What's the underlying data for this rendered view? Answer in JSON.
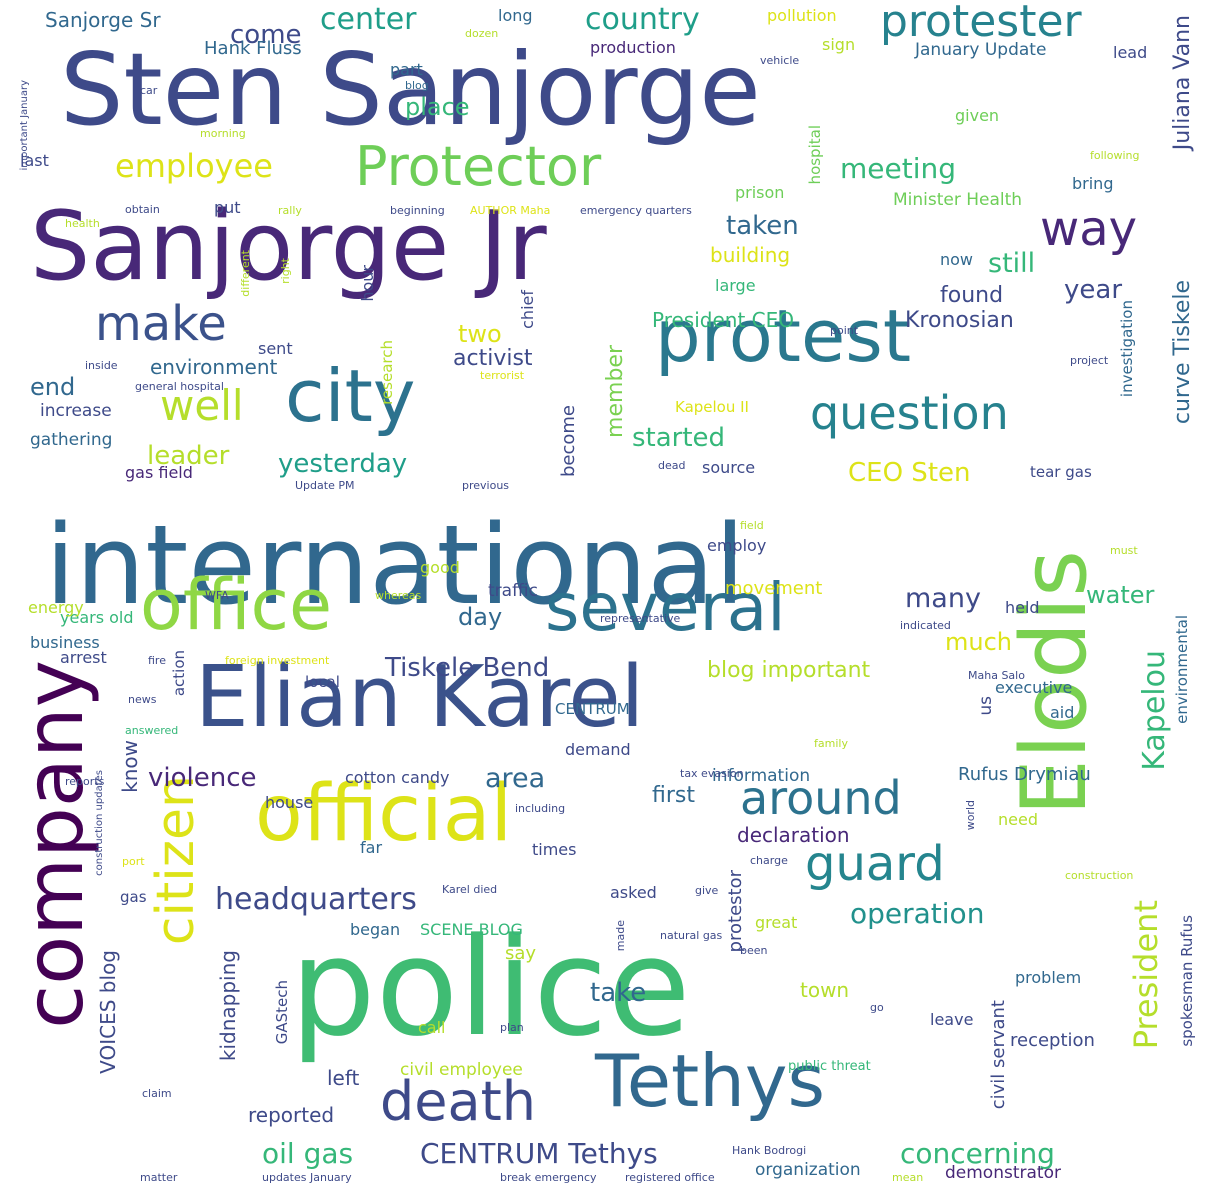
{
  "palette": [
    "#440154",
    "#482878",
    "#3e4a89",
    "#31688e",
    "#26828e",
    "#1f9e89",
    "#35b779",
    "#6ece58",
    "#b5de2b",
    "#dde318",
    "#fde725"
  ],
  "words": [
    {
      "text": "international",
      "size": 1.0,
      "color": "#31688e"
    },
    {
      "text": "police",
      "size": 0.95,
      "color": "#3fbc73"
    },
    {
      "text": "Sten Sanjorge",
      "size": 0.86,
      "color": "#3e4a89"
    },
    {
      "text": "Sanjorge Jr",
      "size": 0.84,
      "color": "#482878"
    },
    {
      "text": "Elian Karel",
      "size": 0.71,
      "color": "#3b528b"
    },
    {
      "text": "Elodis",
      "size": 0.64,
      "color": "#7ad151"
    },
    {
      "text": "company",
      "size": 0.62,
      "color": "#440154"
    },
    {
      "text": "official",
      "size": 0.55,
      "color": "#dde318"
    },
    {
      "text": "Tethys",
      "size": 0.5,
      "color": "#31688e"
    },
    {
      "text": "protest",
      "size": 0.5,
      "color": "#2a788e"
    },
    {
      "text": "city",
      "size": 0.5,
      "color": "#2c728e"
    },
    {
      "text": "office",
      "size": 0.5,
      "color": "#8fd744"
    },
    {
      "text": "several",
      "size": 0.48,
      "color": "#2c728e"
    },
    {
      "text": "citizen",
      "size": 0.45,
      "color": "#dde318"
    },
    {
      "text": "death",
      "size": 0.42,
      "color": "#3e4a89"
    },
    {
      "text": "Protector",
      "size": 0.4,
      "color": "#6ece58"
    },
    {
      "text": "protester",
      "size": 0.35,
      "color": "#26828e"
    },
    {
      "text": "question",
      "size": 0.34,
      "color": "#26828e"
    },
    {
      "text": "around",
      "size": 0.34,
      "color": "#2c728e"
    },
    {
      "text": "guard",
      "size": 0.34,
      "color": "#25858e"
    },
    {
      "text": "make",
      "size": 0.32,
      "color": "#3b528b"
    },
    {
      "text": "way",
      "size": 0.32,
      "color": "#482878"
    },
    {
      "text": "well",
      "size": 0.3,
      "color": "#b5de2b"
    },
    {
      "text": "President",
      "size": 0.3,
      "color": "#b5de2b"
    },
    {
      "text": "headquarters",
      "size": 0.24,
      "color": "#3e4a89"
    },
    {
      "text": "country",
      "size": 0.24,
      "color": "#1f9e89"
    },
    {
      "text": "center",
      "size": 0.24,
      "color": "#1f9e89"
    },
    {
      "text": "Kapelou",
      "size": 0.24,
      "color": "#35b779"
    },
    {
      "text": "employee",
      "size": 0.22,
      "color": "#dde318"
    },
    {
      "text": "meeting",
      "size": 0.22,
      "color": "#35b779"
    },
    {
      "text": "operation",
      "size": 0.22,
      "color": "#21918c"
    },
    {
      "text": "concerning",
      "size": 0.22,
      "color": "#35b779"
    },
    {
      "text": "CENTRUM Tethys",
      "size": 0.21,
      "color": "#3e4a89"
    },
    {
      "text": "Tiskele Bend",
      "size": 0.2,
      "color": "#3e4a89"
    },
    {
      "text": "oil gas",
      "size": 0.21,
      "color": "#35b779"
    },
    {
      "text": "violence",
      "size": 0.21,
      "color": "#482878"
    },
    {
      "text": "leader",
      "size": 0.21,
      "color": "#b5de2b"
    },
    {
      "text": "yesterday",
      "size": 0.21,
      "color": "#1f9e89"
    },
    {
      "text": "CEO Sten",
      "size": 0.21,
      "color": "#dde318"
    },
    {
      "text": "area",
      "size": 0.21,
      "color": "#31688e"
    },
    {
      "text": "many",
      "size": 0.21,
      "color": "#3e4a89"
    },
    {
      "text": "still",
      "size": 0.2,
      "color": "#35b779"
    },
    {
      "text": "year",
      "size": 0.19,
      "color": "#3e4a89"
    },
    {
      "text": "taken",
      "size": 0.19,
      "color": "#31688e"
    },
    {
      "text": "started",
      "size": 0.19,
      "color": "#35b779"
    },
    {
      "text": "come",
      "size": 0.19,
      "color": "#3e4a89"
    },
    {
      "text": "take",
      "size": 0.19,
      "color": "#31688e"
    },
    {
      "text": "much",
      "size": 0.19,
      "color": "#dde318"
    },
    {
      "text": "water",
      "size": 0.19,
      "color": "#35b779"
    },
    {
      "text": "Juliana Vann",
      "size": 0.19,
      "color": "#3e4a89"
    },
    {
      "text": "curve Tiskele",
      "size": 0.19,
      "color": "#31688e"
    },
    {
      "text": "kidnapping",
      "size": 0.18,
      "color": "#3e4a89"
    },
    {
      "text": "VOICES blog",
      "size": 0.17,
      "color": "#3e4a89"
    },
    {
      "text": "place",
      "size": 0.17,
      "color": "#35b779"
    },
    {
      "text": "day",
      "size": 0.17,
      "color": "#31688e"
    },
    {
      "text": "two",
      "size": 0.17,
      "color": "#dde318"
    },
    {
      "text": "end",
      "size": 0.17,
      "color": "#31688e"
    },
    {
      "text": "first",
      "size": 0.16,
      "color": "#31688e"
    },
    {
      "text": "member",
      "size": 0.16,
      "color": "#7ad151"
    },
    {
      "text": "building",
      "size": 0.16,
      "color": "#dde318"
    },
    {
      "text": "found",
      "size": 0.16,
      "color": "#3e4a89"
    },
    {
      "text": "Kronosian",
      "size": 0.16,
      "color": "#3e4a89"
    },
    {
      "text": "President CEO",
      "size": 0.15,
      "color": "#35b779"
    },
    {
      "text": "activist",
      "size": 0.15,
      "color": "#3e4a89"
    },
    {
      "text": "environment",
      "size": 0.15,
      "color": "#31688e"
    },
    {
      "text": "know",
      "size": 0.15,
      "color": "#3e4a89"
    },
    {
      "text": "blog important",
      "size": 0.15,
      "color": "#b5de2b"
    },
    {
      "text": "declaration",
      "size": 0.15,
      "color": "#482878"
    },
    {
      "text": "left",
      "size": 0.15,
      "color": "#3e4a89"
    },
    {
      "text": "town",
      "size": 0.15,
      "color": "#b5de2b"
    },
    {
      "text": "reported",
      "size": 0.15,
      "color": "#3e4a89"
    },
    {
      "text": "reception",
      "size": 0.14,
      "color": "#3e4a89"
    },
    {
      "text": "civil servant",
      "size": 0.14,
      "color": "#3e4a89"
    },
    {
      "text": "become",
      "size": 0.14,
      "color": "#3e4a89"
    },
    {
      "text": "protestor",
      "size": 0.14,
      "color": "#3e4a89"
    },
    {
      "text": "Sanjorge Sr",
      "size": 0.14,
      "color": "#31688e"
    },
    {
      "text": "Rufus Drymiau",
      "size": 0.13,
      "color": "#31688e"
    },
    {
      "text": "say",
      "size": 0.13,
      "color": "#b5de2b"
    },
    {
      "text": "movement",
      "size": 0.13,
      "color": "#dde318"
    },
    {
      "text": "us",
      "size": 0.13,
      "color": "#3e4a89"
    },
    {
      "text": "information",
      "size": 0.12,
      "color": "#31688e"
    },
    {
      "text": "Hank Fluss",
      "size": 0.12,
      "color": "#31688e"
    },
    {
      "text": "January Update",
      "size": 0.12,
      "color": "#31688e"
    },
    {
      "text": "Minister Health",
      "size": 0.12,
      "color": "#6ece58"
    },
    {
      "text": "gas field",
      "size": 0.12,
      "color": "#482878"
    },
    {
      "text": "increase",
      "size": 0.12,
      "color": "#3e4a89"
    },
    {
      "text": "gathering",
      "size": 0.12,
      "color": "#31688e"
    },
    {
      "text": "traffic",
      "size": 0.12,
      "color": "#3e4a89"
    },
    {
      "text": "executive",
      "size": 0.12,
      "color": "#31688e"
    },
    {
      "text": "civil employee",
      "size": 0.12,
      "color": "#b5de2b"
    },
    {
      "text": "organization",
      "size": 0.12,
      "color": "#31688e"
    },
    {
      "text": "demonstrator",
      "size": 0.12,
      "color": "#482878"
    },
    {
      "text": "cotton candy",
      "size": 0.12,
      "color": "#3e4a89"
    },
    {
      "text": "house",
      "size": 0.12,
      "color": "#3e4a89"
    },
    {
      "text": "business",
      "size": 0.12,
      "color": "#31688e"
    },
    {
      "text": "arrest",
      "size": 0.12,
      "color": "#3e4a89"
    },
    {
      "text": "years old",
      "size": 0.12,
      "color": "#35b779"
    },
    {
      "text": "energy",
      "size": 0.12,
      "color": "#b5de2b"
    },
    {
      "text": "employ",
      "size": 0.12,
      "color": "#3e4a89"
    },
    {
      "text": "great",
      "size": 0.12,
      "color": "#b5de2b"
    },
    {
      "text": "held",
      "size": 0.12,
      "color": "#3e4a89"
    },
    {
      "text": "problem",
      "size": 0.12,
      "color": "#31688e"
    },
    {
      "text": "leave",
      "size": 0.12,
      "color": "#3e4a89"
    },
    {
      "text": "pollution",
      "size": 0.12,
      "color": "#dde318"
    },
    {
      "text": "production",
      "size": 0.12,
      "color": "#482878"
    },
    {
      "text": "long",
      "size": 0.12,
      "color": "#31688e"
    },
    {
      "text": "sign",
      "size": 0.12,
      "color": "#b5de2b"
    },
    {
      "text": "lead",
      "size": 0.12,
      "color": "#3e4a89"
    },
    {
      "text": "part",
      "size": 0.11,
      "color": "#31688e"
    },
    {
      "text": "given",
      "size": 0.11,
      "color": "#6ece58"
    },
    {
      "text": "prison",
      "size": 0.11,
      "color": "#6ece58"
    },
    {
      "text": "bring",
      "size": 0.11,
      "color": "#31688e"
    },
    {
      "text": "put",
      "size": 0.11,
      "color": "#3e4a89"
    },
    {
      "text": "hour",
      "size": 0.11,
      "color": "#3e4a89"
    },
    {
      "text": "now",
      "size": 0.11,
      "color": "#31688e"
    },
    {
      "text": "large",
      "size": 0.11,
      "color": "#35b779"
    },
    {
      "text": "sent",
      "size": 0.11,
      "color": "#3e4a89"
    },
    {
      "text": "last",
      "size": 0.11,
      "color": "#3e4a89"
    },
    {
      "text": "chief",
      "size": 0.11,
      "color": "#3e4a89"
    },
    {
      "text": "source",
      "size": 0.11,
      "color": "#3e4a89"
    },
    {
      "text": "good",
      "size": 0.11,
      "color": "#b5de2b"
    },
    {
      "text": "demand",
      "size": 0.11,
      "color": "#3e4a89"
    },
    {
      "text": "far",
      "size": 0.11,
      "color": "#31688e"
    },
    {
      "text": "times",
      "size": 0.11,
      "color": "#3e4a89"
    },
    {
      "text": "asked",
      "size": 0.11,
      "color": "#3e4a89"
    },
    {
      "text": "began",
      "size": 0.11,
      "color": "#31688e"
    },
    {
      "text": "SCENE BLOG",
      "size": 0.11,
      "color": "#35b779"
    },
    {
      "text": "call",
      "size": 0.11,
      "color": "#b5de2b"
    },
    {
      "text": "need",
      "size": 0.11,
      "color": "#b5de2b"
    },
    {
      "text": "local",
      "size": 0.11,
      "color": "#3e4a89"
    },
    {
      "text": "aid",
      "size": 0.11,
      "color": "#31688e"
    },
    {
      "text": "action",
      "size": 0.11,
      "color": "#3e4a89"
    },
    {
      "text": "research",
      "size": 0.11,
      "color": "#b5de2b"
    },
    {
      "text": "hospital",
      "size": 0.11,
      "color": "#6ece58"
    },
    {
      "text": "investigation",
      "size": 0.11,
      "color": "#31688e"
    },
    {
      "text": "environmental",
      "size": 0.11,
      "color": "#31688e"
    },
    {
      "text": "spokesman Rufus",
      "size": 0.11,
      "color": "#3e4a89"
    },
    {
      "text": "Kapelou II",
      "size": 0.11,
      "color": "#dde318"
    },
    {
      "text": "CENTRUM",
      "size": 0.1,
      "color": "#31688e"
    },
    {
      "text": "gas",
      "size": 0.1,
      "color": "#3e4a89"
    },
    {
      "text": "tear gas",
      "size": 0.1,
      "color": "#3e4a89"
    },
    {
      "text": "GAStech",
      "size": 0.1,
      "color": "#3e4a89"
    },
    {
      "text": "public threat",
      "size": 0.09,
      "color": "#35b779"
    },
    {
      "text": "health",
      "size": 0.08,
      "color": "#b5de2b"
    },
    {
      "text": "obtain",
      "size": 0.08,
      "color": "#3e4a89"
    },
    {
      "text": "rally",
      "size": 0.08,
      "color": "#b5de2b"
    },
    {
      "text": "beginning",
      "size": 0.08,
      "color": "#3e4a89"
    },
    {
      "text": "AUTHOR Maha",
      "size": 0.08,
      "color": "#dde318"
    },
    {
      "text": "emergency quarters",
      "size": 0.08,
      "color": "#3e4a89"
    },
    {
      "text": "car",
      "size": 0.08,
      "color": "#3e4a89"
    },
    {
      "text": "morning",
      "size": 0.08,
      "color": "#b5de2b"
    },
    {
      "text": "blog",
      "size": 0.08,
      "color": "#31688e"
    },
    {
      "text": "vehicle",
      "size": 0.08,
      "color": "#3e4a89"
    },
    {
      "text": "dozen",
      "size": 0.08,
      "color": "#b5de2b"
    },
    {
      "text": "following",
      "size": 0.08,
      "color": "#b5de2b"
    },
    {
      "text": "right",
      "size": 0.08,
      "color": "#b5de2b"
    },
    {
      "text": "different",
      "size": 0.08,
      "color": "#b5de2b"
    },
    {
      "text": "point",
      "size": 0.08,
      "color": "#3e4a89"
    },
    {
      "text": "inside",
      "size": 0.08,
      "color": "#3e4a89"
    },
    {
      "text": "general hospital",
      "size": 0.08,
      "color": "#3e4a89"
    },
    {
      "text": "terrorist",
      "size": 0.08,
      "color": "#dde318"
    },
    {
      "text": "project",
      "size": 0.08,
      "color": "#3e4a89"
    },
    {
      "text": "Update PM",
      "size": 0.08,
      "color": "#3e4a89"
    },
    {
      "text": "previous",
      "size": 0.08,
      "color": "#3e4a89"
    },
    {
      "text": "dead",
      "size": 0.08,
      "color": "#3e4a89"
    },
    {
      "text": "field",
      "size": 0.08,
      "color": "#b5de2b"
    },
    {
      "text": "must",
      "size": 0.08,
      "color": "#b5de2b"
    },
    {
      "text": "WFA",
      "size": 0.08,
      "color": "#3e4a89"
    },
    {
      "text": "whereas",
      "size": 0.08,
      "color": "#b5de2b"
    },
    {
      "text": "representative",
      "size": 0.08,
      "color": "#3e4a89"
    },
    {
      "text": "indicated",
      "size": 0.08,
      "color": "#3e4a89"
    },
    {
      "text": "foreign investment",
      "size": 0.08,
      "color": "#dde318"
    },
    {
      "text": "fire",
      "size": 0.08,
      "color": "#3e4a89"
    },
    {
      "text": "Maha Salo",
      "size": 0.08,
      "color": "#3e4a89"
    },
    {
      "text": "news",
      "size": 0.08,
      "color": "#3e4a89"
    },
    {
      "text": "answered",
      "size": 0.08,
      "color": "#35b779"
    },
    {
      "text": "family",
      "size": 0.08,
      "color": "#b5de2b"
    },
    {
      "text": "tax evasion",
      "size": 0.08,
      "color": "#3e4a89"
    },
    {
      "text": "reports",
      "size": 0.08,
      "color": "#3e4a89"
    },
    {
      "text": "including",
      "size": 0.08,
      "color": "#3e4a89"
    },
    {
      "text": "world",
      "size": 0.08,
      "color": "#3e4a89"
    },
    {
      "text": "charge",
      "size": 0.08,
      "color": "#3e4a89"
    },
    {
      "text": "construction",
      "size": 0.08,
      "color": "#b5de2b"
    },
    {
      "text": "port",
      "size": 0.08,
      "color": "#dde318"
    },
    {
      "text": "Karel died",
      "size": 0.08,
      "color": "#3e4a89"
    },
    {
      "text": "give",
      "size": 0.08,
      "color": "#3e4a89"
    },
    {
      "text": "natural gas",
      "size": 0.08,
      "color": "#3e4a89"
    },
    {
      "text": "made",
      "size": 0.08,
      "color": "#3e4a89"
    },
    {
      "text": "been",
      "size": 0.08,
      "color": "#3e4a89"
    },
    {
      "text": "go",
      "size": 0.08,
      "color": "#3e4a89"
    },
    {
      "text": "plan",
      "size": 0.08,
      "color": "#3e4a89"
    },
    {
      "text": "claim",
      "size": 0.08,
      "color": "#3e4a89"
    },
    {
      "text": "matter",
      "size": 0.08,
      "color": "#3e4a89"
    },
    {
      "text": "updates January",
      "size": 0.08,
      "color": "#3e4a89"
    },
    {
      "text": "break emergency",
      "size": 0.08,
      "color": "#3e4a89"
    },
    {
      "text": "registered office",
      "size": 0.08,
      "color": "#3e4a89"
    },
    {
      "text": "Hank Bodrogi",
      "size": 0.08,
      "color": "#3e4a89"
    },
    {
      "text": "mean",
      "size": 0.08,
      "color": "#b5de2b"
    },
    {
      "text": "important January",
      "size": 0.07,
      "color": "#3e4a89"
    },
    {
      "text": "construction updates",
      "size": 0.07,
      "color": "#3e4a89"
    },
    {
      "text": "quarters construction",
      "size": 0.07,
      "color": "#3e4a89"
    }
  ]
}
